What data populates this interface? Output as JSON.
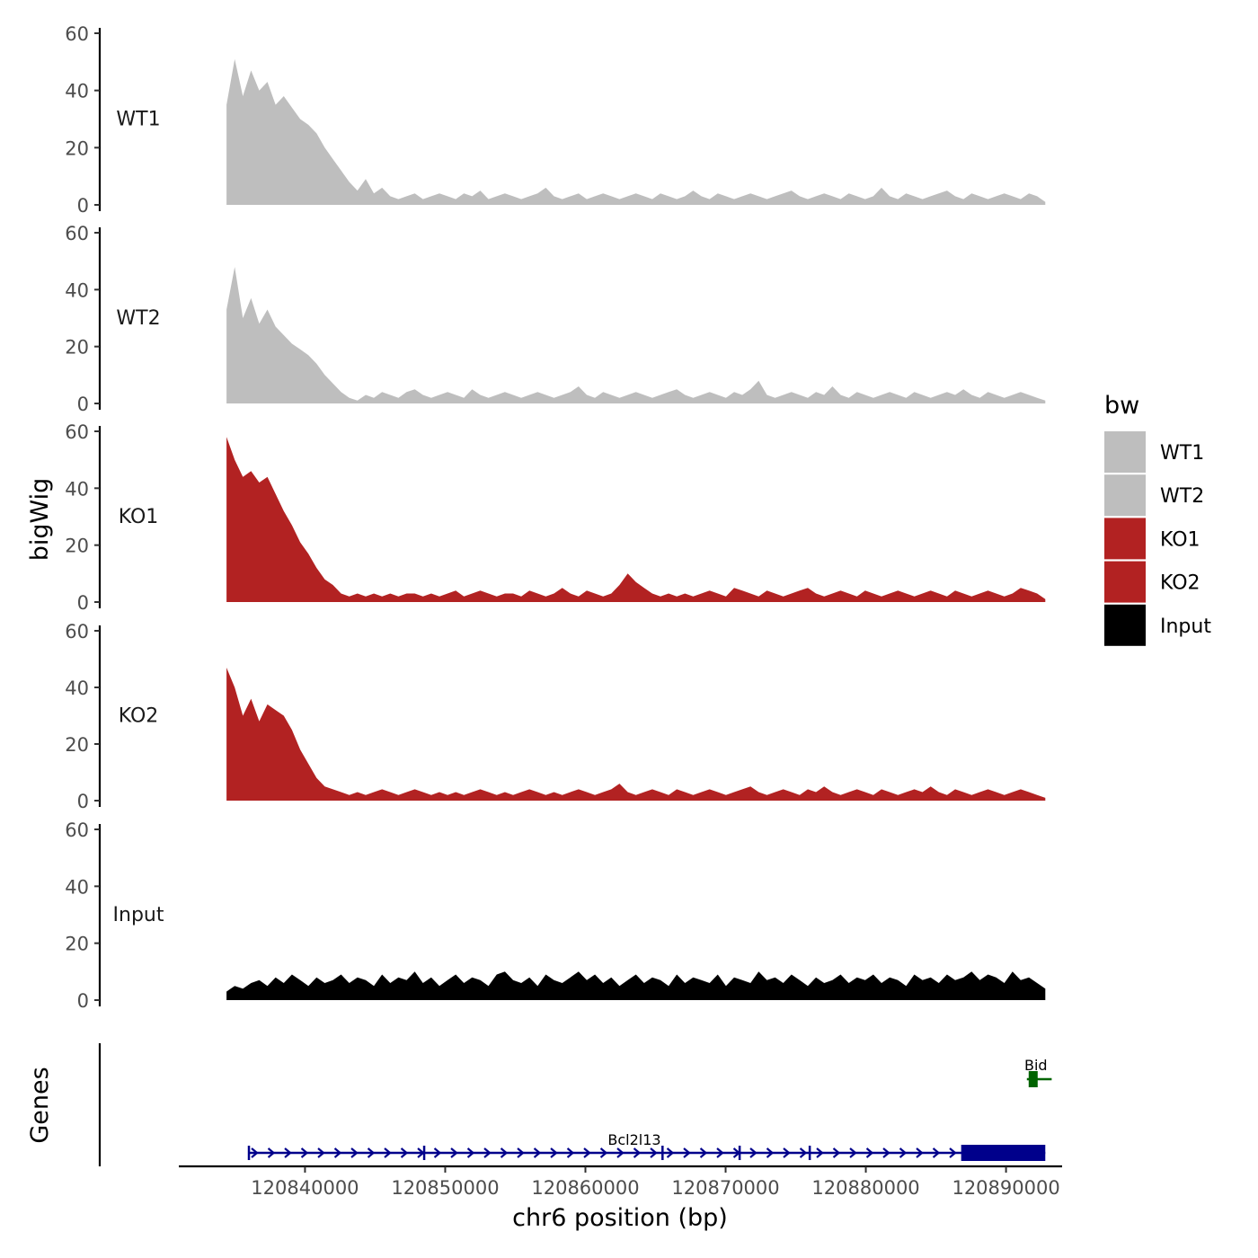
{
  "chart_data": {
    "type": "area",
    "ylabel": "bigWig",
    "xlabel": "chr6 position (bp)",
    "genes_label": "Genes",
    "ylim": [
      0,
      60
    ],
    "yticks": [
      0,
      20,
      40,
      60
    ],
    "xlim": [
      120831000,
      120894000
    ],
    "xticks": [
      120840000,
      120850000,
      120860000,
      120870000,
      120880000,
      120890000
    ],
    "xtick_labels": [
      "120840000",
      "120850000",
      "120860000",
      "120870000",
      "120880000",
      "120890000"
    ],
    "signal_range": [
      120834400,
      120892800
    ],
    "legend": {
      "title": "bw",
      "position": "right",
      "entries": [
        {
          "label": "WT1",
          "color": "#bebebe"
        },
        {
          "label": "WT2",
          "color": "#bebebe"
        },
        {
          "label": "KO1",
          "color": "#b22222"
        },
        {
          "label": "KO2",
          "color": "#b22222"
        },
        {
          "label": "Input",
          "color": "#000000"
        }
      ]
    },
    "series": [
      {
        "name": "WT1",
        "color": "#bebebe",
        "values": [
          35,
          51,
          38,
          47,
          40,
          43,
          35,
          38,
          34,
          30,
          28,
          25,
          20,
          16,
          12,
          8,
          5,
          9,
          4,
          6,
          3,
          2,
          3,
          4,
          2,
          3,
          4,
          3,
          2,
          4,
          3,
          5,
          2,
          3,
          4,
          3,
          2,
          3,
          4,
          6,
          3,
          2,
          3,
          4,
          2,
          3,
          4,
          3,
          2,
          3,
          4,
          3,
          2,
          4,
          3,
          2,
          3,
          5,
          3,
          2,
          4,
          3,
          2,
          3,
          4,
          3,
          2,
          3,
          4,
          5,
          3,
          2,
          3,
          4,
          3,
          2,
          4,
          3,
          2,
          3,
          6,
          3,
          2,
          4,
          3,
          2,
          3,
          4,
          5,
          3,
          2,
          4,
          3,
          2,
          3,
          4,
          3,
          2,
          4,
          3,
          1
        ]
      },
      {
        "name": "WT2",
        "color": "#bebebe",
        "values": [
          33,
          48,
          30,
          37,
          28,
          33,
          27,
          24,
          21,
          19,
          17,
          14,
          10,
          7,
          4,
          2,
          1,
          3,
          2,
          4,
          3,
          2,
          4,
          5,
          3,
          2,
          3,
          4,
          3,
          2,
          5,
          3,
          2,
          3,
          4,
          3,
          2,
          3,
          4,
          3,
          2,
          3,
          4,
          6,
          3,
          2,
          4,
          3,
          2,
          3,
          4,
          3,
          2,
          3,
          4,
          5,
          3,
          2,
          3,
          4,
          3,
          2,
          4,
          3,
          5,
          8,
          3,
          2,
          3,
          4,
          3,
          2,
          4,
          3,
          6,
          3,
          2,
          4,
          3,
          2,
          3,
          4,
          3,
          2,
          4,
          3,
          2,
          3,
          4,
          3,
          5,
          3,
          2,
          4,
          3,
          2,
          3,
          4,
          3,
          2,
          1
        ]
      },
      {
        "name": "KO1",
        "color": "#b22222",
        "values": [
          58,
          50,
          44,
          46,
          42,
          44,
          38,
          32,
          27,
          21,
          17,
          12,
          8,
          6,
          3,
          2,
          3,
          2,
          3,
          2,
          3,
          2,
          3,
          3,
          2,
          3,
          2,
          3,
          4,
          2,
          3,
          4,
          3,
          2,
          3,
          3,
          2,
          4,
          3,
          2,
          3,
          5,
          3,
          2,
          4,
          3,
          2,
          3,
          6,
          10,
          7,
          5,
          3,
          2,
          3,
          2,
          3,
          2,
          3,
          4,
          3,
          2,
          5,
          4,
          3,
          2,
          4,
          3,
          2,
          3,
          4,
          5,
          3,
          2,
          3,
          4,
          3,
          2,
          4,
          3,
          2,
          3,
          4,
          3,
          2,
          3,
          4,
          3,
          2,
          4,
          3,
          2,
          3,
          4,
          3,
          2,
          3,
          5,
          4,
          3,
          1
        ]
      },
      {
        "name": "KO2",
        "color": "#b22222",
        "values": [
          47,
          40,
          30,
          36,
          28,
          34,
          32,
          30,
          25,
          18,
          13,
          8,
          5,
          4,
          3,
          2,
          3,
          2,
          3,
          4,
          3,
          2,
          3,
          4,
          3,
          2,
          3,
          2,
          3,
          2,
          3,
          4,
          3,
          2,
          3,
          2,
          3,
          4,
          3,
          2,
          3,
          2,
          3,
          4,
          3,
          2,
          3,
          4,
          6,
          3,
          2,
          3,
          4,
          3,
          2,
          4,
          3,
          2,
          3,
          4,
          3,
          2,
          3,
          4,
          5,
          3,
          2,
          3,
          4,
          3,
          2,
          4,
          3,
          5,
          3,
          2,
          3,
          4,
          3,
          2,
          4,
          3,
          2,
          3,
          4,
          3,
          5,
          3,
          2,
          4,
          3,
          2,
          3,
          4,
          3,
          2,
          3,
          4,
          3,
          2,
          1
        ]
      },
      {
        "name": "Input",
        "color": "#000000",
        "values": [
          3,
          5,
          4,
          6,
          7,
          5,
          8,
          6,
          9,
          7,
          5,
          8,
          6,
          7,
          9,
          6,
          8,
          7,
          5,
          9,
          6,
          8,
          7,
          10,
          6,
          8,
          5,
          7,
          9,
          6,
          8,
          7,
          5,
          9,
          10,
          7,
          6,
          8,
          5,
          9,
          7,
          6,
          8,
          10,
          7,
          9,
          6,
          8,
          5,
          7,
          9,
          6,
          8,
          7,
          5,
          9,
          6,
          8,
          7,
          6,
          9,
          5,
          8,
          7,
          6,
          10,
          7,
          8,
          6,
          9,
          7,
          5,
          8,
          6,
          7,
          9,
          6,
          8,
          7,
          9,
          6,
          8,
          7,
          5,
          9,
          7,
          8,
          6,
          9,
          7,
          8,
          10,
          7,
          9,
          8,
          6,
          10,
          7,
          8,
          6,
          4
        ]
      }
    ],
    "genes": [
      {
        "name": "Bcl2l13",
        "color": "#00008b",
        "strand": "+",
        "start": 120836000,
        "end": 120892800,
        "thick_start": 120886800,
        "exons": [
          120836000,
          120848500,
          120865500,
          120871000,
          120876000
        ]
      },
      {
        "name": "Bid",
        "color": "#006400",
        "strand": "-",
        "start": 120892000,
        "end": 120893000
      }
    ]
  }
}
